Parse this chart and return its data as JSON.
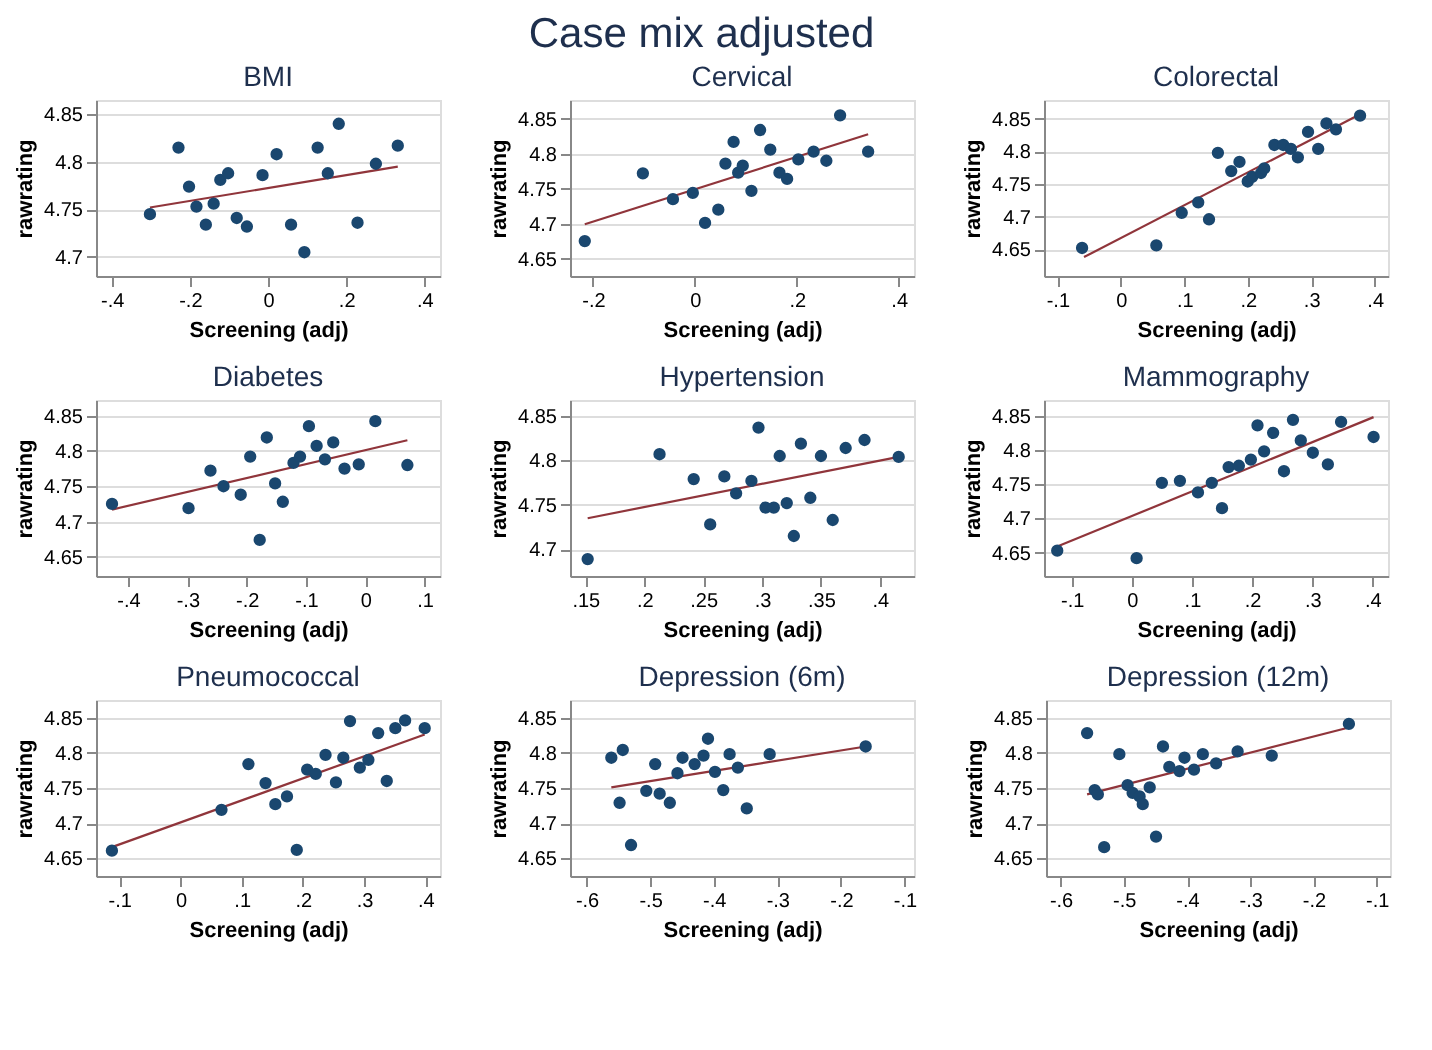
{
  "chart_data": [
    {
      "type": "other",
      "title": "Case mix adjusted"
    },
    {
      "type": "scatter",
      "title": "BMI",
      "xlabel": "Screening (adj)",
      "ylabel": "rawrating",
      "grid": "y",
      "xlim": [
        -0.44,
        0.44
      ],
      "ylim": [
        4.68,
        4.865
      ],
      "xticks": [
        {
          "value": -0.4,
          "label": "-.4"
        },
        {
          "value": -0.2,
          "label": "-.2"
        },
        0,
        {
          "value": 0.2,
          "label": ".2"
        },
        {
          "value": 0.4,
          "label": ".4"
        }
      ],
      "yticks": [
        4.7,
        4.75,
        4.8,
        4.85
      ],
      "series": [
        {
          "type": "scatter",
          "marker": "circle",
          "color": "#1a476f",
          "x": [
            -0.302,
            -0.229,
            -0.202,
            -0.183,
            -0.159,
            -0.139,
            -0.122,
            -0.102,
            -0.08,
            -0.054,
            -0.014,
            0.022,
            0.059,
            0.093,
            0.127,
            0.153,
            0.181,
            0.229,
            0.276,
            0.332
          ],
          "values": [
            4.745,
            4.815,
            4.774,
            4.753,
            4.734,
            4.756,
            4.781,
            4.788,
            4.741,
            4.732,
            4.786,
            4.808,
            4.734,
            4.705,
            4.815,
            4.788,
            4.84,
            4.736,
            4.798,
            4.817
          ]
        },
        {
          "type": "line",
          "line_style": "solid",
          "color": "#90353b",
          "x": [
            -0.302,
            0.332
          ],
          "values": [
            4.752,
            4.795
          ]
        }
      ]
    },
    {
      "type": "scatter",
      "title": "Cervical",
      "xlabel": "Screening (adj)",
      "ylabel": "rawrating",
      "grid": "y",
      "xlim": [
        -0.245,
        0.43
      ],
      "ylim": [
        4.625,
        4.877
      ],
      "xticks": [
        {
          "value": -0.2,
          "label": "-.2"
        },
        0,
        {
          "value": 0.2,
          "label": ".2"
        },
        {
          "value": 0.4,
          "label": ".4"
        }
      ],
      "yticks": [
        4.65,
        4.7,
        4.75,
        4.8,
        4.85
      ],
      "series": [
        {
          "type": "scatter",
          "marker": "circle",
          "color": "#1a476f",
          "x": [
            -0.216,
            -0.102,
            -0.043,
            -0.004,
            0.02,
            0.046,
            0.06,
            0.076,
            0.085,
            0.094,
            0.111,
            0.128,
            0.148,
            0.166,
            0.181,
            0.203,
            0.233,
            0.258,
            0.285,
            0.34
          ],
          "values": [
            4.675,
            4.772,
            4.735,
            4.744,
            4.701,
            4.72,
            4.786,
            4.817,
            4.773,
            4.783,
            4.747,
            4.834,
            4.806,
            4.773,
            4.764,
            4.792,
            4.803,
            4.79,
            4.855,
            4.803
          ]
        },
        {
          "type": "line",
          "line_style": "solid",
          "color": "#90353b",
          "x": [
            -0.216,
            0.34
          ],
          "values": [
            4.699,
            4.828
          ]
        }
      ]
    },
    {
      "type": "scatter",
      "title": "Colorectal",
      "xlabel": "Screening (adj)",
      "ylabel": "rawrating",
      "grid": "y",
      "xlim": [
        -0.121,
        0.421
      ],
      "ylim": [
        4.609,
        4.879
      ],
      "xticks": [
        {
          "value": -0.1,
          "label": "-.1"
        },
        0,
        {
          "value": 0.1,
          "label": ".1"
        },
        {
          "value": 0.2,
          "label": ".2"
        },
        {
          "value": 0.3,
          "label": ".3"
        },
        {
          "value": 0.4,
          "label": ".4"
        }
      ],
      "yticks": [
        4.65,
        4.7,
        4.75,
        4.8,
        4.85
      ],
      "series": [
        {
          "type": "scatter",
          "marker": "circle",
          "color": "#1a476f",
          "x": [
            -0.061,
            0.056,
            0.096,
            0.122,
            0.139,
            0.153,
            0.174,
            0.187,
            0.2,
            0.207,
            0.221,
            0.226,
            0.242,
            0.256,
            0.268,
            0.279,
            0.295,
            0.311,
            0.324,
            0.339,
            0.377
          ],
          "values": [
            4.652,
            4.656,
            4.706,
            4.722,
            4.696,
            4.798,
            4.77,
            4.784,
            4.754,
            4.761,
            4.767,
            4.774,
            4.81,
            4.81,
            4.804,
            4.791,
            4.83,
            4.804,
            4.843,
            4.834,
            4.855
          ]
        },
        {
          "type": "line",
          "line_style": "solid",
          "color": "#90353b",
          "x": [
            -0.058,
            0.377
          ],
          "values": [
            4.638,
            4.857
          ]
        }
      ]
    },
    {
      "type": "scatter",
      "title": "Diabetes",
      "xlabel": "Screening (adj)",
      "ylabel": "rawrating",
      "grid": "y",
      "xlim": [
        -0.454,
        0.126
      ],
      "ylim": [
        4.623,
        4.872
      ],
      "xticks": [
        {
          "value": -0.4,
          "label": "-.4"
        },
        {
          "value": -0.3,
          "label": "-.3"
        },
        {
          "value": -0.2,
          "label": "-.2"
        },
        {
          "value": -0.1,
          "label": "-.1"
        },
        0,
        {
          "value": 0.1,
          "label": ".1"
        }
      ],
      "yticks": [
        4.65,
        4.7,
        4.75,
        4.8,
        4.85
      ],
      "series": [
        {
          "type": "scatter",
          "marker": "circle",
          "color": "#1a476f",
          "x": [
            -0.427,
            -0.298,
            -0.261,
            -0.239,
            -0.21,
            -0.194,
            -0.178,
            -0.166,
            -0.152,
            -0.139,
            -0.121,
            -0.11,
            -0.095,
            -0.082,
            -0.068,
            -0.054,
            -0.035,
            -0.011,
            0.017,
            0.071
          ],
          "values": [
            4.725,
            4.719,
            4.772,
            4.75,
            4.738,
            4.792,
            4.674,
            4.819,
            4.754,
            4.728,
            4.783,
            4.792,
            4.835,
            4.807,
            4.788,
            4.812,
            4.775,
            4.781,
            4.842,
            4.78
          ]
        },
        {
          "type": "line",
          "line_style": "solid",
          "color": "#90353b",
          "x": [
            -0.427,
            0.071
          ],
          "values": [
            4.717,
            4.815
          ]
        }
      ]
    },
    {
      "type": "scatter",
      "title": "Hypertension",
      "xlabel": "Screening (adj)",
      "ylabel": "rawrating",
      "grid": "y",
      "xlim": [
        0.137,
        0.429
      ],
      "ylim": [
        4.67,
        4.868
      ],
      "xticks": [
        {
          "value": 0.15,
          "label": ".15"
        },
        {
          "value": 0.2,
          "label": ".2"
        },
        {
          "value": 0.25,
          "label": ".25"
        },
        {
          "value": 0.3,
          "label": ".3"
        },
        {
          "value": 0.35,
          "label": ".35"
        },
        {
          "value": 0.4,
          "label": ".4"
        }
      ],
      "yticks": [
        4.7,
        4.75,
        4.8,
        4.85
      ],
      "series": [
        {
          "type": "scatter",
          "marker": "circle",
          "color": "#1a476f",
          "x": [
            0.152,
            0.213,
            0.242,
            0.256,
            0.268,
            0.278,
            0.291,
            0.297,
            0.303,
            0.31,
            0.315,
            0.321,
            0.327,
            0.333,
            0.341,
            0.35,
            0.36,
            0.371,
            0.387,
            0.416
          ],
          "values": [
            4.689,
            4.807,
            4.779,
            4.728,
            4.782,
            4.763,
            4.777,
            4.837,
            4.747,
            4.747,
            4.805,
            4.752,
            4.715,
            4.819,
            4.758,
            4.805,
            4.733,
            4.814,
            4.823,
            4.804
          ]
        },
        {
          "type": "line",
          "line_style": "solid",
          "color": "#90353b",
          "x": [
            0.152,
            0.416
          ],
          "values": [
            4.735,
            4.804
          ]
        }
      ]
    },
    {
      "type": "scatter",
      "title": "Mammography",
      "xlabel": "Screening (adj)",
      "ylabel": "rawrating",
      "grid": "y",
      "xlim": [
        -0.146,
        0.426
      ],
      "ylim": [
        4.616,
        4.873
      ],
      "xticks": [
        {
          "value": -0.1,
          "label": "-.1"
        },
        0,
        {
          "value": 0.1,
          "label": ".1"
        },
        {
          "value": 0.2,
          "label": ".2"
        },
        {
          "value": 0.3,
          "label": ".3"
        },
        {
          "value": 0.4,
          "label": ".4"
        }
      ],
      "yticks": [
        4.65,
        4.7,
        4.75,
        4.8,
        4.85
      ],
      "series": [
        {
          "type": "scatter",
          "marker": "circle",
          "color": "#1a476f",
          "x": [
            -0.124,
            0.008,
            0.05,
            0.08,
            0.11,
            0.133,
            0.15,
            0.161,
            0.178,
            0.198,
            0.209,
            0.22,
            0.235,
            0.253,
            0.268,
            0.281,
            0.301,
            0.326,
            0.348,
            0.402
          ],
          "values": [
            4.653,
            4.642,
            4.752,
            4.755,
            4.738,
            4.752,
            4.715,
            4.775,
            4.777,
            4.786,
            4.836,
            4.798,
            4.825,
            4.769,
            4.844,
            4.814,
            4.796,
            4.779,
            4.841,
            4.819
          ]
        },
        {
          "type": "line",
          "line_style": "solid",
          "color": "#90353b",
          "x": [
            -0.124,
            0.402
          ],
          "values": [
            4.659,
            4.848
          ]
        }
      ]
    },
    {
      "type": "scatter",
      "title": "Pneumococcal",
      "xlabel": "Screening (adj)",
      "ylabel": "rawrating",
      "grid": "y",
      "xlim": [
        -0.138,
        0.424
      ],
      "ylim": [
        4.625,
        4.875
      ],
      "xticks": [
        {
          "value": -0.1,
          "label": "-.1"
        },
        0,
        {
          "value": 0.1,
          "label": ".1"
        },
        {
          "value": 0.2,
          "label": ".2"
        },
        {
          "value": 0.3,
          "label": ".3"
        },
        {
          "value": 0.4,
          "label": ".4"
        }
      ],
      "yticks": [
        4.65,
        4.7,
        4.75,
        4.8,
        4.85
      ],
      "series": [
        {
          "type": "scatter",
          "marker": "circle",
          "color": "#1a476f",
          "x": [
            -0.112,
            0.067,
            0.111,
            0.139,
            0.155,
            0.174,
            0.19,
            0.207,
            0.221,
            0.237,
            0.254,
            0.266,
            0.277,
            0.293,
            0.307,
            0.323,
            0.337,
            0.351,
            0.367,
            0.399
          ],
          "values": [
            4.661,
            4.719,
            4.784,
            4.757,
            4.727,
            4.738,
            4.662,
            4.776,
            4.77,
            4.797,
            4.758,
            4.793,
            4.845,
            4.779,
            4.79,
            4.828,
            4.76,
            4.835,
            4.846,
            4.835
          ]
        },
        {
          "type": "line",
          "line_style": "solid",
          "color": "#90353b",
          "x": [
            -0.112,
            0.399
          ],
          "values": [
            4.666,
            4.826
          ]
        }
      ]
    },
    {
      "type": "scatter",
      "title": "Depression (6m)",
      "xlabel": "Screening (adj)",
      "ylabel": "rawrating",
      "grid": "y",
      "xlim": [
        -0.626,
        -0.085
      ],
      "ylim": [
        4.625,
        4.875
      ],
      "xticks": [
        {
          "value": -0.6,
          "label": "-.6"
        },
        {
          "value": -0.5,
          "label": "-.5"
        },
        {
          "value": -0.4,
          "label": "-.4"
        },
        {
          "value": -0.3,
          "label": "-.3"
        },
        {
          "value": -0.2,
          "label": "-.2"
        },
        {
          "value": -0.1,
          "label": "-.1"
        }
      ],
      "yticks": [
        4.65,
        4.7,
        4.75,
        4.8,
        4.85
      ],
      "series": [
        {
          "type": "scatter",
          "marker": "circle",
          "color": "#1a476f",
          "x": [
            -0.561,
            -0.543,
            -0.548,
            -0.53,
            -0.506,
            -0.492,
            -0.485,
            -0.469,
            -0.457,
            -0.449,
            -0.43,
            -0.416,
            -0.409,
            -0.398,
            -0.385,
            -0.375,
            -0.362,
            -0.348,
            -0.312,
            -0.161
          ],
          "values": [
            4.793,
            4.804,
            4.729,
            4.669,
            4.746,
            4.784,
            4.742,
            4.729,
            4.771,
            4.793,
            4.784,
            4.796,
            4.82,
            4.773,
            4.747,
            4.798,
            4.779,
            4.721,
            4.798,
            4.809
          ]
        },
        {
          "type": "line",
          "line_style": "solid",
          "color": "#90353b",
          "x": [
            -0.561,
            -0.161
          ],
          "values": [
            4.751,
            4.809
          ]
        }
      ]
    },
    {
      "type": "scatter",
      "title": "Depression (12m)",
      "xlabel": "Screening (adj)",
      "ylabel": "rawrating",
      "grid": "y",
      "xlim": [
        -0.623,
        -0.079
      ],
      "ylim": [
        4.625,
        4.875
      ],
      "xticks": [
        {
          "value": -0.6,
          "label": "-.6"
        },
        {
          "value": -0.5,
          "label": "-.5"
        },
        {
          "value": -0.4,
          "label": "-.4"
        },
        {
          "value": -0.3,
          "label": "-.3"
        },
        {
          "value": -0.2,
          "label": "-.2"
        },
        {
          "value": -0.1,
          "label": "-.1"
        }
      ],
      "yticks": [
        4.65,
        4.7,
        4.75,
        4.8,
        4.85
      ],
      "series": [
        {
          "type": "scatter",
          "marker": "circle",
          "color": "#1a476f",
          "x": [
            -0.558,
            -0.546,
            -0.541,
            -0.531,
            -0.507,
            -0.494,
            -0.486,
            -0.475,
            -0.47,
            -0.459,
            -0.449,
            -0.438,
            -0.428,
            -0.412,
            -0.404,
            -0.389,
            -0.375,
            -0.354,
            -0.32,
            -0.266,
            -0.144
          ],
          "values": [
            4.828,
            4.747,
            4.741,
            4.666,
            4.798,
            4.754,
            4.743,
            4.738,
            4.727,
            4.751,
            4.681,
            4.809,
            4.78,
            4.774,
            4.793,
            4.776,
            4.798,
            4.785,
            4.802,
            4.796,
            4.841
          ]
        },
        {
          "type": "line",
          "line_style": "solid",
          "color": "#90353b",
          "x": [
            -0.558,
            -0.144
          ],
          "values": [
            4.741,
            4.836
          ]
        }
      ]
    }
  ]
}
